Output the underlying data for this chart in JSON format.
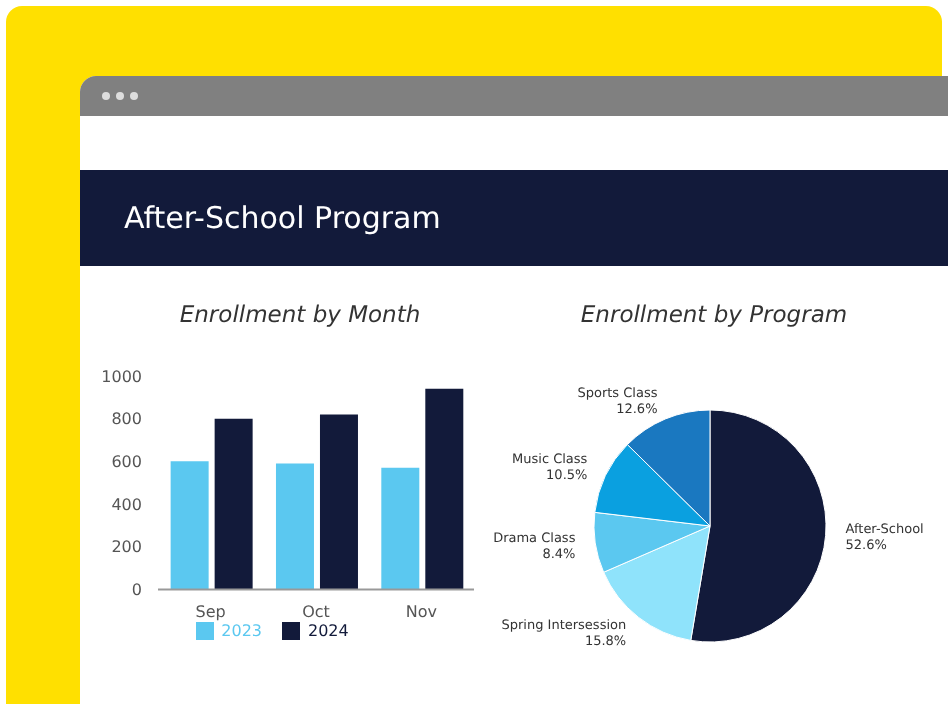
{
  "chart_data": [
    {
      "type": "other",
      "title": "After-School Program"
    },
    {
      "type": "bar",
      "title": "Enrollment by Month",
      "categories": [
        "Sep",
        "Oct",
        "Nov"
      ],
      "series": [
        {
          "name": "2023",
          "color": "#5bc8f0",
          "values": [
            600,
            590,
            570
          ]
        },
        {
          "name": "2024",
          "color": "#121a3a",
          "values": [
            800,
            820,
            940
          ]
        }
      ],
      "ylim": [
        0,
        1000
      ],
      "yticks": [
        0,
        200,
        400,
        600,
        800,
        1000
      ],
      "grid": false,
      "legend": "bottom"
    },
    {
      "type": "pie",
      "title": "Enrollment by Program",
      "categories": [
        "After-School",
        "Spring Intersession",
        "Drama Class",
        "Music Class",
        "Sports Class"
      ],
      "values": [
        52.6,
        15.8,
        8.4,
        10.5,
        12.6
      ],
      "colors": [
        "#121a3a",
        "#8fe3fb",
        "#5bc8f0",
        "#0aa0e0",
        "#1a78c0"
      ],
      "value_labels": [
        "52.6%",
        "15.8%",
        "8.4%",
        "10.5%",
        "12.6%"
      ]
    }
  ]
}
